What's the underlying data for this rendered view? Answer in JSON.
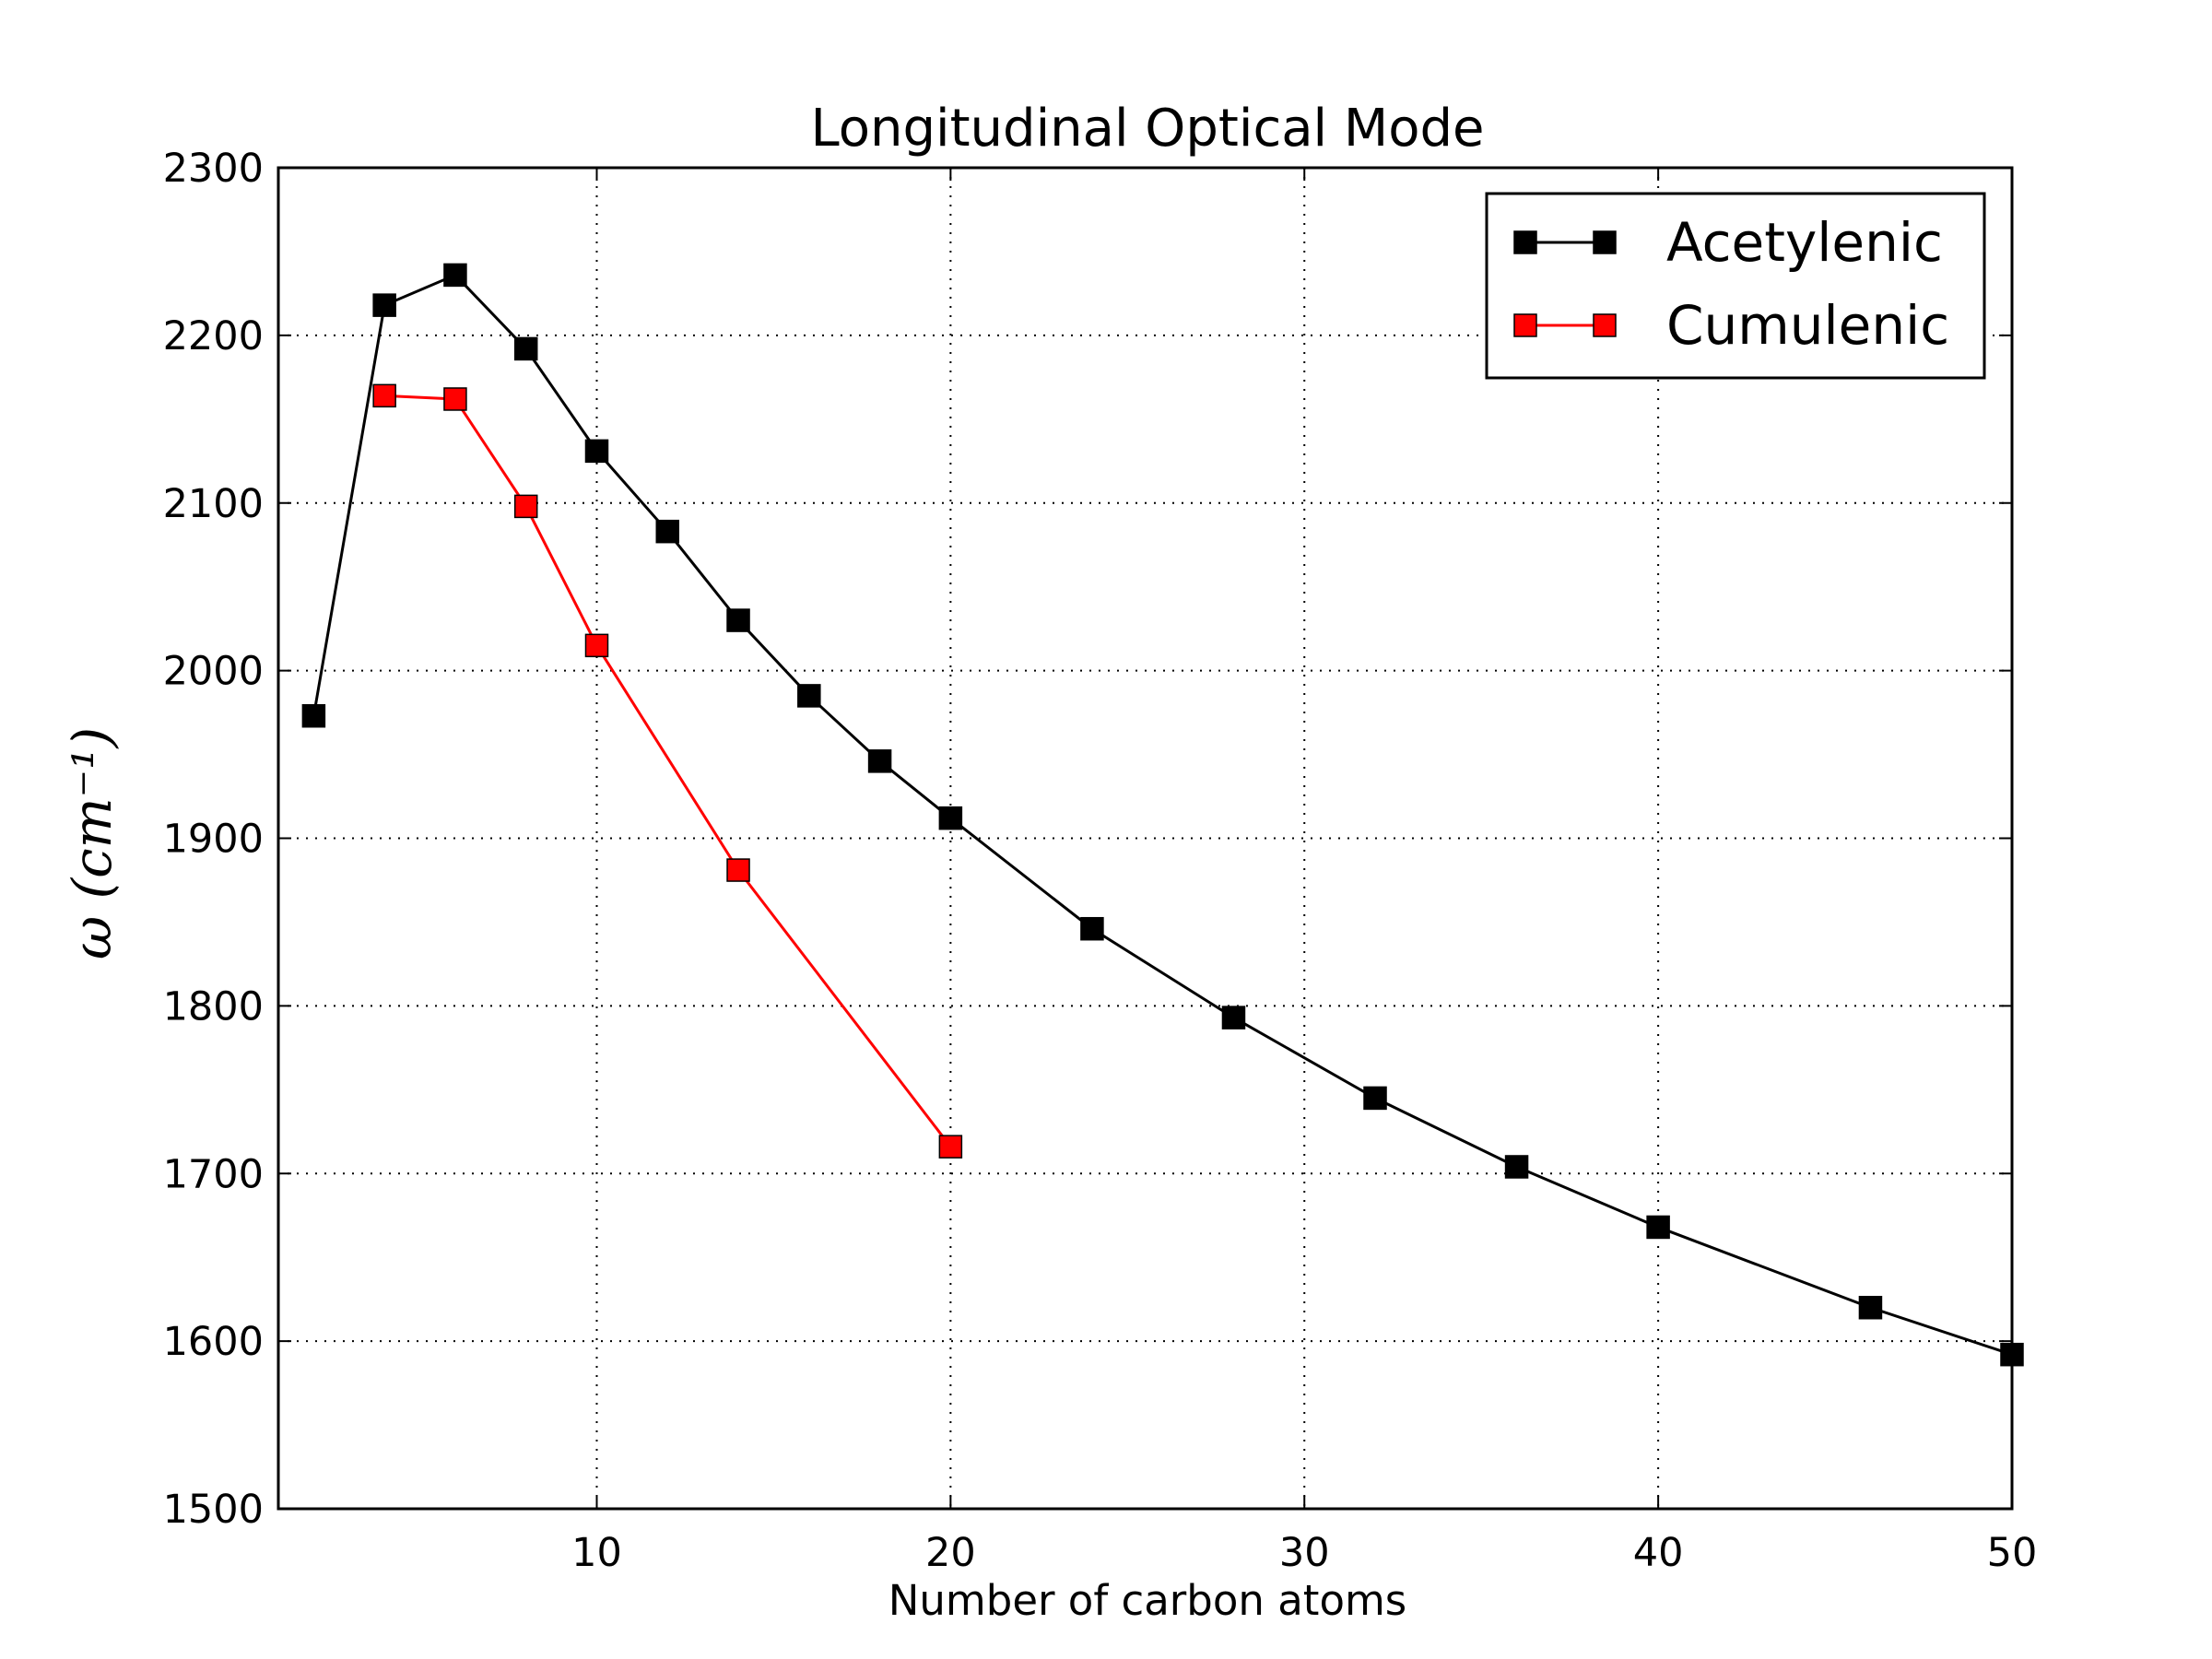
{
  "chart_data": {
    "type": "line",
    "title": "Longitudinal Optical Mode",
    "xlabel": "Number of carbon atoms",
    "ylabel": "ω (cm⁻¹)",
    "xlim": [
      1,
      50
    ],
    "ylim": [
      1500,
      2300
    ],
    "xticks": [
      10,
      20,
      30,
      40,
      50
    ],
    "yticks": [
      1500,
      1600,
      1700,
      1800,
      1900,
      2000,
      2100,
      2200,
      2300
    ],
    "grid": true,
    "legend_position": "top-right",
    "series": [
      {
        "name": "Acetylenic",
        "color": "#000000",
        "marker": "square",
        "x": [
          2,
          4,
          6,
          8,
          10,
          12,
          14,
          16,
          18,
          20,
          24,
          28,
          32,
          36,
          40,
          46,
          50
        ],
        "y": [
          1973,
          2218,
          2236,
          2192,
          2131,
          2083,
          2030,
          1985,
          1946,
          1912,
          1846,
          1793,
          1745,
          1704,
          1668,
          1620,
          1592
        ]
      },
      {
        "name": "Cumulenic",
        "color": "#ff0000",
        "marker": "square",
        "x": [
          4,
          6,
          8,
          10,
          14,
          20
        ],
        "y": [
          2164,
          2162,
          2098,
          2015,
          1881,
          1716
        ]
      }
    ]
  }
}
